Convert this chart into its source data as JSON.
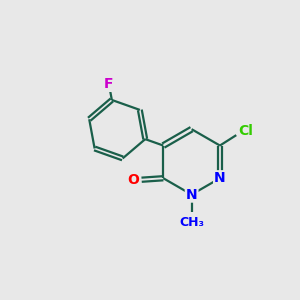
{
  "background_color": "#e8e8e8",
  "bond_color": "#1a5f4a",
  "atom_colors": {
    "F": "#cc00cc",
    "O": "#ff0000",
    "N": "#0000ff",
    "Cl": "#33cc00",
    "C": "#000000"
  },
  "fig_size": [
    3.0,
    3.0
  ],
  "dpi": 100
}
